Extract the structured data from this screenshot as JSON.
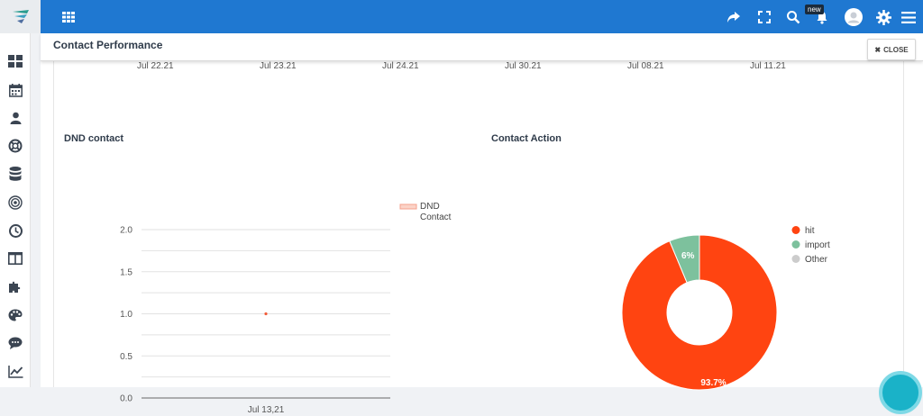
{
  "topbar": {
    "new_badge": "new",
    "icons": [
      "apps-icon",
      "share-icon",
      "fullscreen-icon",
      "search-icon",
      "bell-icon",
      "avatar",
      "gear-icon",
      "menu-icon"
    ]
  },
  "sidebar": {
    "icons": [
      "dashboard-icon",
      "calendar-icon",
      "person-icon",
      "lifebuoy-icon",
      "database-icon",
      "target-icon",
      "clock-icon",
      "columns-icon",
      "puzzle-icon",
      "palette-icon",
      "chat-icon",
      "trend-icon"
    ]
  },
  "panel": {
    "title": "Contact Performance",
    "close_label": "CLOSE",
    "ghost_ticks": [
      "Jul 22,21",
      "Jul 23,21",
      "Jul 24,21",
      "Jul 30,21",
      "Jul 08,21",
      "Jul 11,21"
    ]
  },
  "dnd": {
    "title": "DND contact",
    "legend_line1": "DND",
    "legend_line2": "Contact"
  },
  "action": {
    "title": "Contact Action"
  },
  "chart_data": [
    {
      "type": "line",
      "title": "DND contact",
      "categories": [
        "Jul 13,21"
      ],
      "series": [
        {
          "name": "DND Contact",
          "values": [
            1.0
          ]
        }
      ],
      "ylim": [
        0,
        2
      ],
      "yticks": [
        "0.0",
        "0.5",
        "1.0",
        "1.5",
        "2.0"
      ],
      "legend": "top-right",
      "grid": true,
      "colors": {
        "line": "#f4a08c",
        "point": "#f25c3a"
      }
    },
    {
      "type": "pie",
      "title": "Contact Action",
      "labels": [
        "hit",
        "import",
        "Other"
      ],
      "values": [
        93.7,
        6.3,
        0
      ],
      "display_labels": [
        "93.7%",
        "6%",
        ""
      ],
      "colors": [
        "#ff4411",
        "#7dc19d",
        "#cccccc"
      ],
      "legend": "right"
    }
  ]
}
